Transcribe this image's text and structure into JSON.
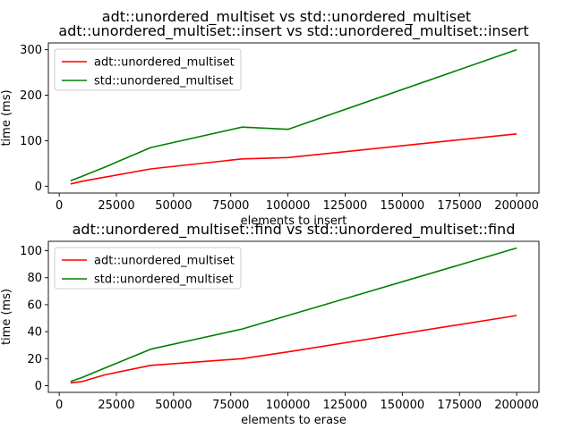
{
  "figure": {
    "suptitle": "adt::unordered_multiset vs std::unordered_multiset"
  },
  "chart_data": [
    {
      "type": "line",
      "title": "adt::unordered_multiset::insert vs std::unordered_multiset::insert",
      "xlabel": "elements to insert",
      "ylabel": "time (ms)",
      "xlim": [
        -4750,
        209750
      ],
      "ylim": [
        -15,
        315
      ],
      "xticks": [
        0,
        25000,
        50000,
        75000,
        100000,
        125000,
        150000,
        175000,
        200000
      ],
      "xtick_labels": [
        "0",
        "25000",
        "50000",
        "75000",
        "100000",
        "125000",
        "150000",
        "175000",
        "200000"
      ],
      "yticks": [
        0,
        100,
        200,
        300
      ],
      "ytick_labels": [
        "0",
        "100",
        "200",
        "300"
      ],
      "grid": false,
      "legend": "upper-left",
      "series": [
        {
          "name": "adt::unordered_multiset",
          "color": "#ff0000",
          "x": [
            5000,
            10000,
            20000,
            40000,
            80000,
            100000,
            200000
          ],
          "y": [
            5,
            11,
            20,
            38,
            60,
            63,
            115
          ]
        },
        {
          "name": "std::unordered_multiset",
          "color": "#008000",
          "x": [
            5000,
            10000,
            20000,
            40000,
            80000,
            100000,
            200000
          ],
          "y": [
            12,
            22,
            42,
            85,
            130,
            125,
            300
          ]
        }
      ]
    },
    {
      "type": "line",
      "title": "adt::unordered_multiset::find vs std::unordered_multiset::find",
      "xlabel": "elements to erase",
      "ylabel": "time (ms)",
      "xlim": [
        -4750,
        209750
      ],
      "ylim": [
        -5,
        107
      ],
      "xticks": [
        0,
        25000,
        50000,
        75000,
        100000,
        125000,
        150000,
        175000,
        200000
      ],
      "xtick_labels": [
        "0",
        "25000",
        "50000",
        "75000",
        "100000",
        "125000",
        "150000",
        "175000",
        "200000"
      ],
      "yticks": [
        0,
        20,
        40,
        60,
        80,
        100
      ],
      "ytick_labels": [
        "0",
        "20",
        "40",
        "60",
        "80",
        "100"
      ],
      "grid": false,
      "legend": "upper-left",
      "series": [
        {
          "name": "adt::unordered_multiset",
          "color": "#ff0000",
          "x": [
            5000,
            10000,
            20000,
            40000,
            80000,
            100000,
            200000
          ],
          "y": [
            2,
            3,
            8,
            15,
            20,
            25,
            52
          ]
        },
        {
          "name": "std::unordered_multiset",
          "color": "#008000",
          "x": [
            5000,
            10000,
            20000,
            40000,
            80000,
            100000,
            200000
          ],
          "y": [
            3,
            6,
            13,
            27,
            42,
            52,
            102
          ]
        }
      ]
    }
  ]
}
